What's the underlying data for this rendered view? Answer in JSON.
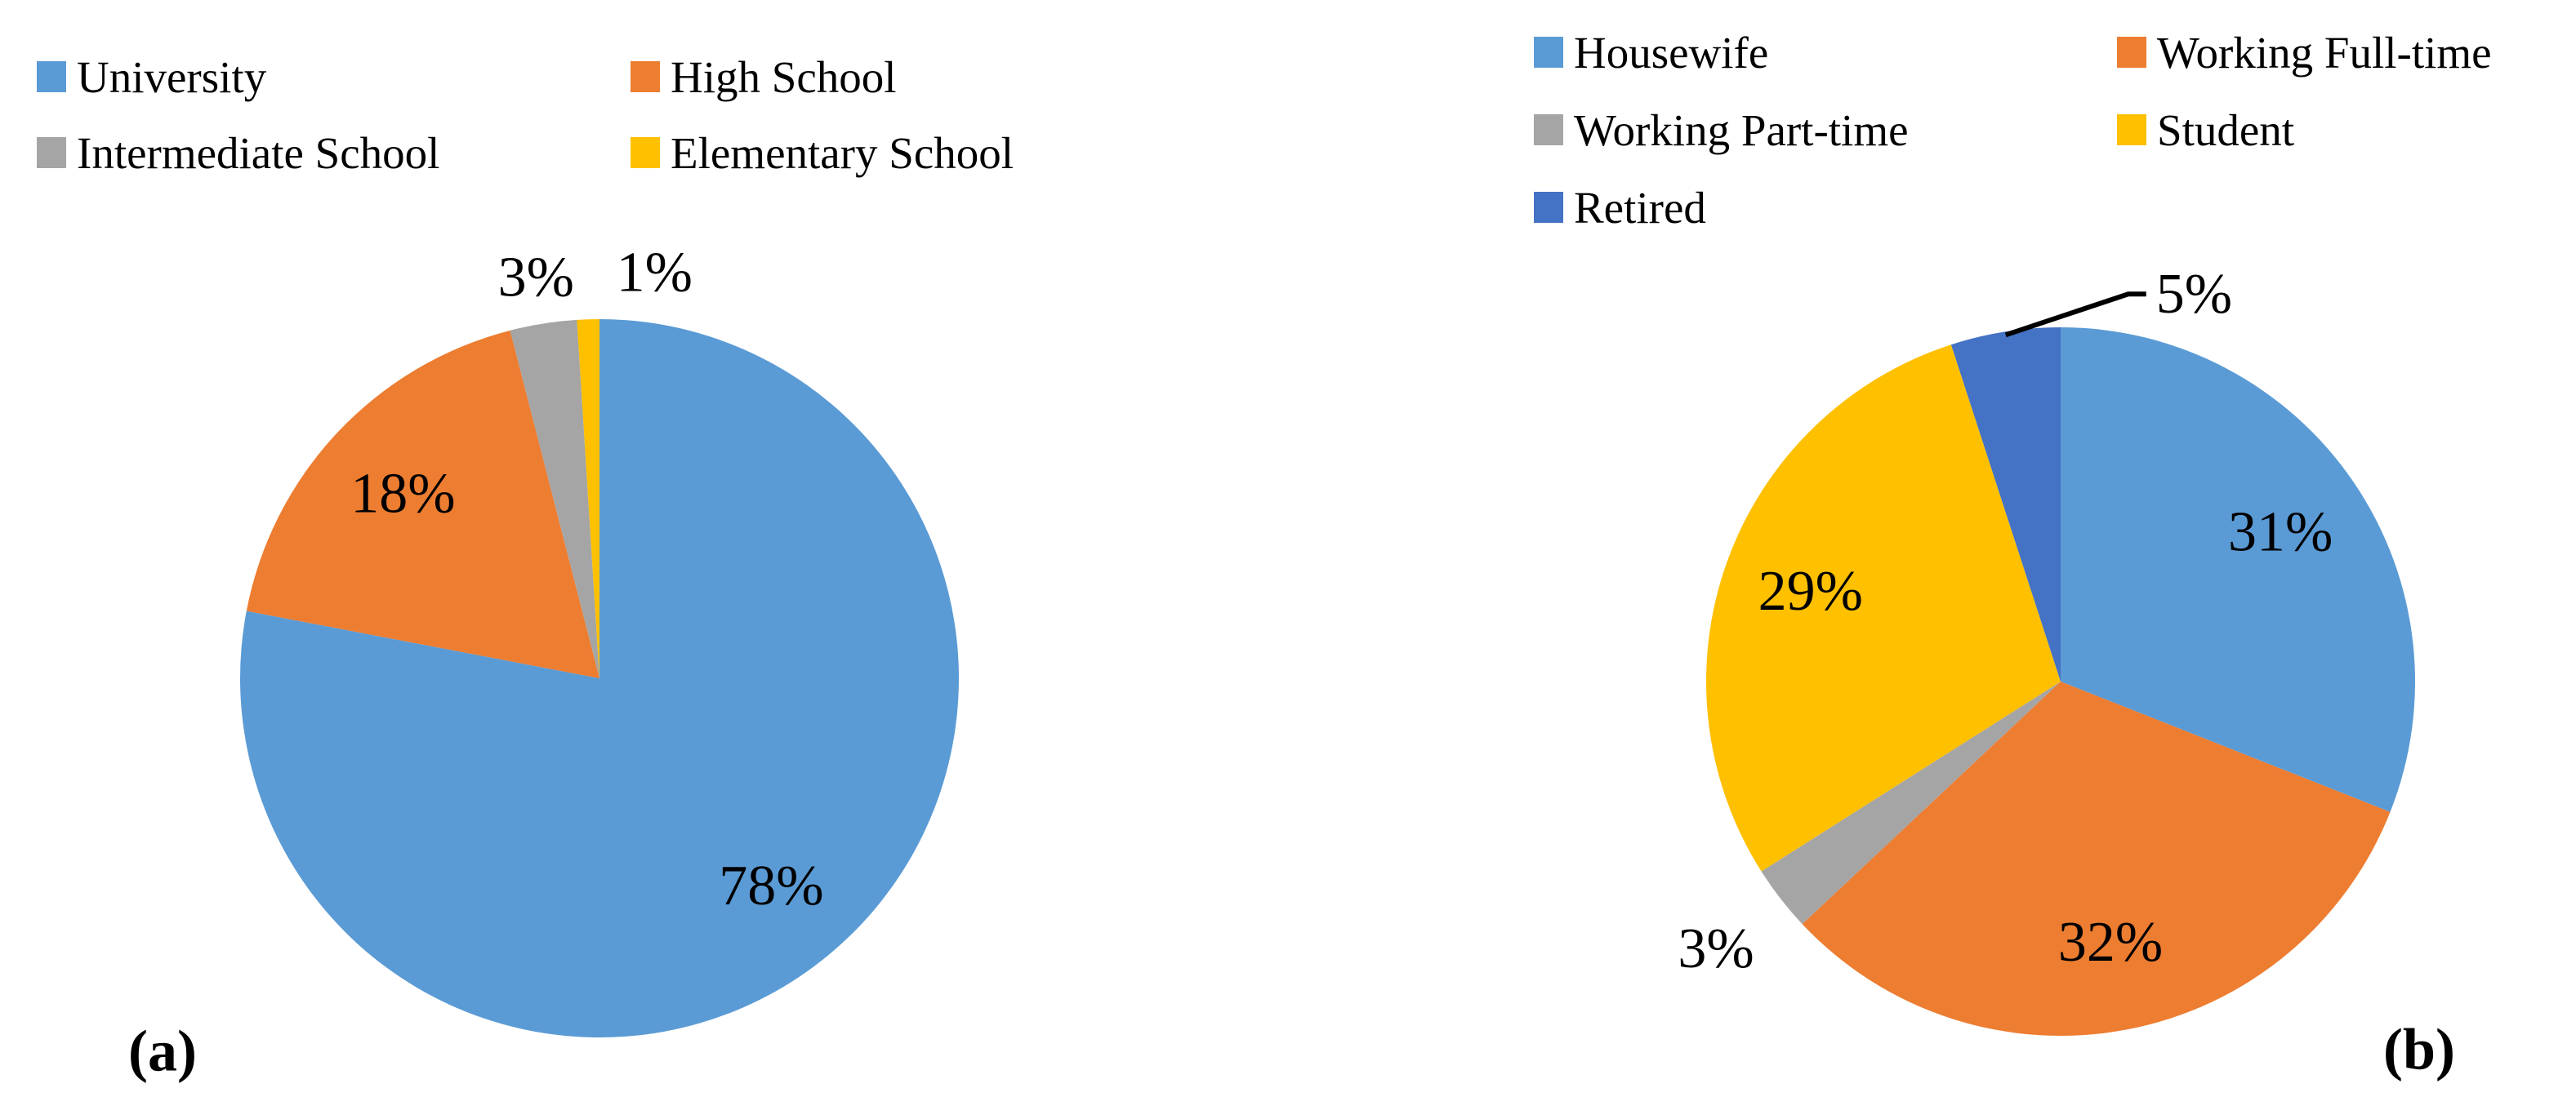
{
  "figure": {
    "background": "#ffffff",
    "text_color": "#000000"
  },
  "chart_data": [
    {
      "type": "pie",
      "panel_label": "(a)",
      "start_angle_deg": 0,
      "direction": "clockwise",
      "legend_position": "top",
      "legend_columns": 2,
      "slices": [
        {
          "label": "University",
          "value": 78,
          "label_text": "78%",
          "color": "#5B9BD5",
          "label_placement": "inside"
        },
        {
          "label": "High School",
          "value": 18,
          "label_text": "18%",
          "color": "#ED7D31",
          "label_placement": "inside"
        },
        {
          "label": "Intermediate School",
          "value": 3,
          "label_text": "3%",
          "color": "#A5A5A5",
          "label_placement": "outside"
        },
        {
          "label": "Elementary School",
          "value": 1,
          "label_text": "1%",
          "color": "#FFC000",
          "label_placement": "outside"
        }
      ]
    },
    {
      "type": "pie",
      "panel_label": "(b)",
      "start_angle_deg": 0,
      "direction": "clockwise",
      "legend_position": "top",
      "legend_columns": 2,
      "slices": [
        {
          "label": "Housewife",
          "value": 31,
          "label_text": "31%",
          "color": "#5B9BD5",
          "label_placement": "inside"
        },
        {
          "label": "Working Full-time",
          "value": 32,
          "label_text": "32%",
          "color": "#ED7D31",
          "label_placement": "inside"
        },
        {
          "label": "Working Part-time",
          "value": 3,
          "label_text": "3%",
          "color": "#A5A5A5",
          "label_placement": "outside"
        },
        {
          "label": "Student",
          "value": 29,
          "label_text": "29%",
          "color": "#FFC000",
          "label_placement": "inside"
        },
        {
          "label": "Retired",
          "value": 5,
          "label_text": "5%",
          "color": "#4472C4",
          "label_placement": "outside",
          "callout": true
        }
      ]
    }
  ]
}
